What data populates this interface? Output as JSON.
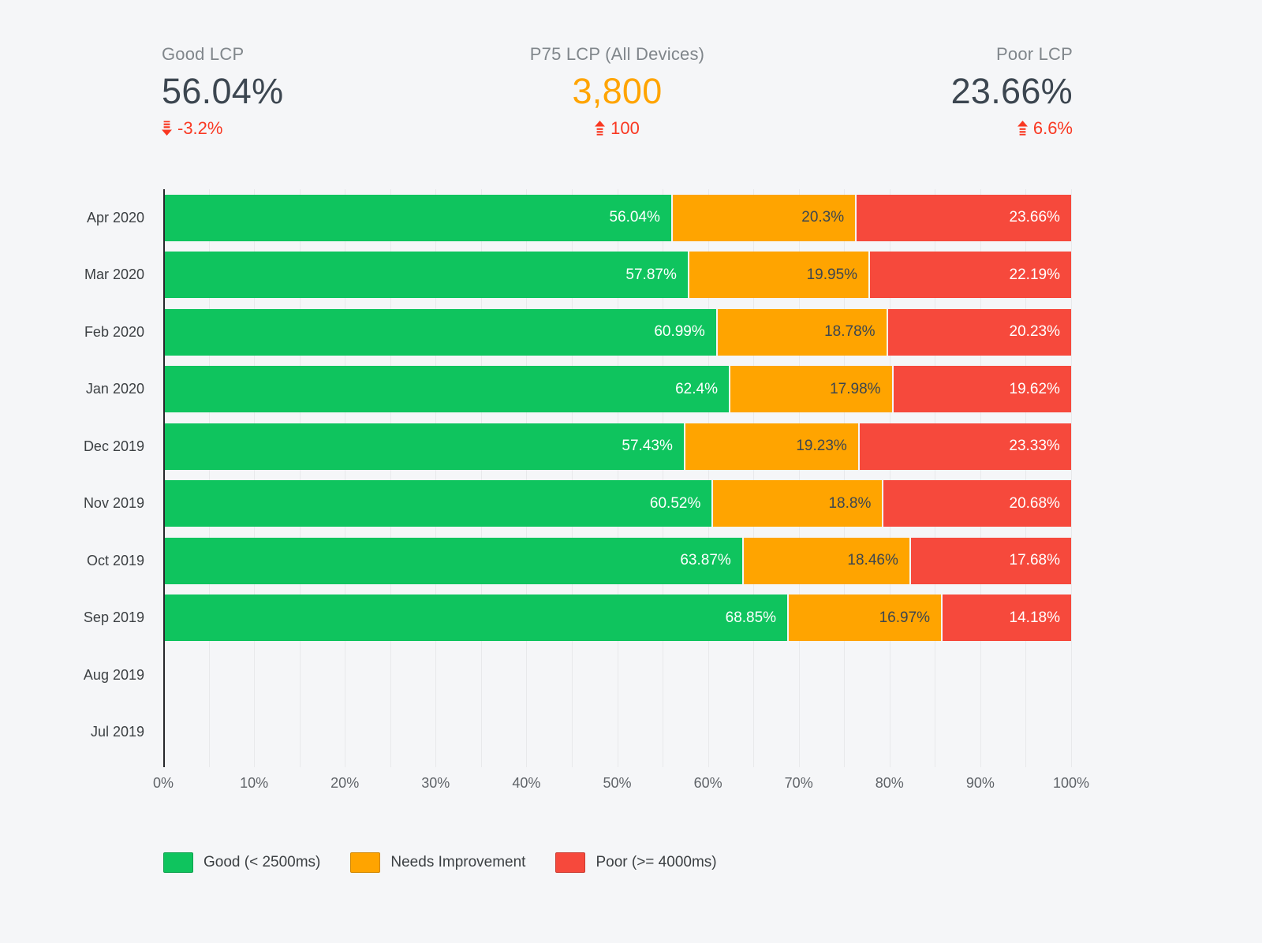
{
  "page": {
    "background": "#F5F6F8"
  },
  "kpis": [
    {
      "label": "Good LCP",
      "value": "56.04%",
      "change": "-3.2%",
      "direction": "down",
      "value_color": "#3C4650",
      "align": "left"
    },
    {
      "label": "P75 LCP (All Devices)",
      "value": "3,800",
      "change": "100",
      "direction": "up",
      "value_color": "#FFA400",
      "align": "center"
    },
    {
      "label": "Poor LCP",
      "value": "23.66%",
      "change": "6.6%",
      "direction": "up",
      "value_color": "#3C4650",
      "align": "right"
    }
  ],
  "trend_color": "#F93822",
  "chart_data": {
    "type": "bar",
    "orientation": "horizontal",
    "stacked": true,
    "unit": "%",
    "categories": [
      "Apr 2020",
      "Mar 2020",
      "Feb 2020",
      "Jan 2020",
      "Dec 2019",
      "Nov 2019",
      "Oct 2019",
      "Sep 2019",
      "Aug 2019",
      "Jul 2019"
    ],
    "series": [
      {
        "name": "Good (< 2500ms)",
        "color": "#0FC45E",
        "label_color": "#FFFFFF",
        "values": [
          56.04,
          57.87,
          60.99,
          62.4,
          57.43,
          60.52,
          63.87,
          68.85,
          null,
          null
        ]
      },
      {
        "name": "Needs Improvement",
        "color": "#FFA400",
        "label_color": "#3C4650",
        "values": [
          20.3,
          19.95,
          18.78,
          17.98,
          19.23,
          18.8,
          18.46,
          16.97,
          null,
          null
        ]
      },
      {
        "name": "Poor (>= 4000ms)",
        "color": "#F6493C",
        "label_color": "#FFFFFF",
        "values": [
          23.66,
          22.19,
          20.23,
          19.62,
          23.33,
          20.68,
          17.68,
          14.18,
          null,
          null
        ]
      }
    ],
    "x_ticks": [
      "0%",
      "10%",
      "20%",
      "30%",
      "40%",
      "50%",
      "60%",
      "70%",
      "80%",
      "90%",
      "100%"
    ],
    "xlim": [
      0,
      100
    ],
    "grid": {
      "vertical_every_percent": 5,
      "color": "#E8E9EB"
    },
    "legend_position": "bottom"
  }
}
